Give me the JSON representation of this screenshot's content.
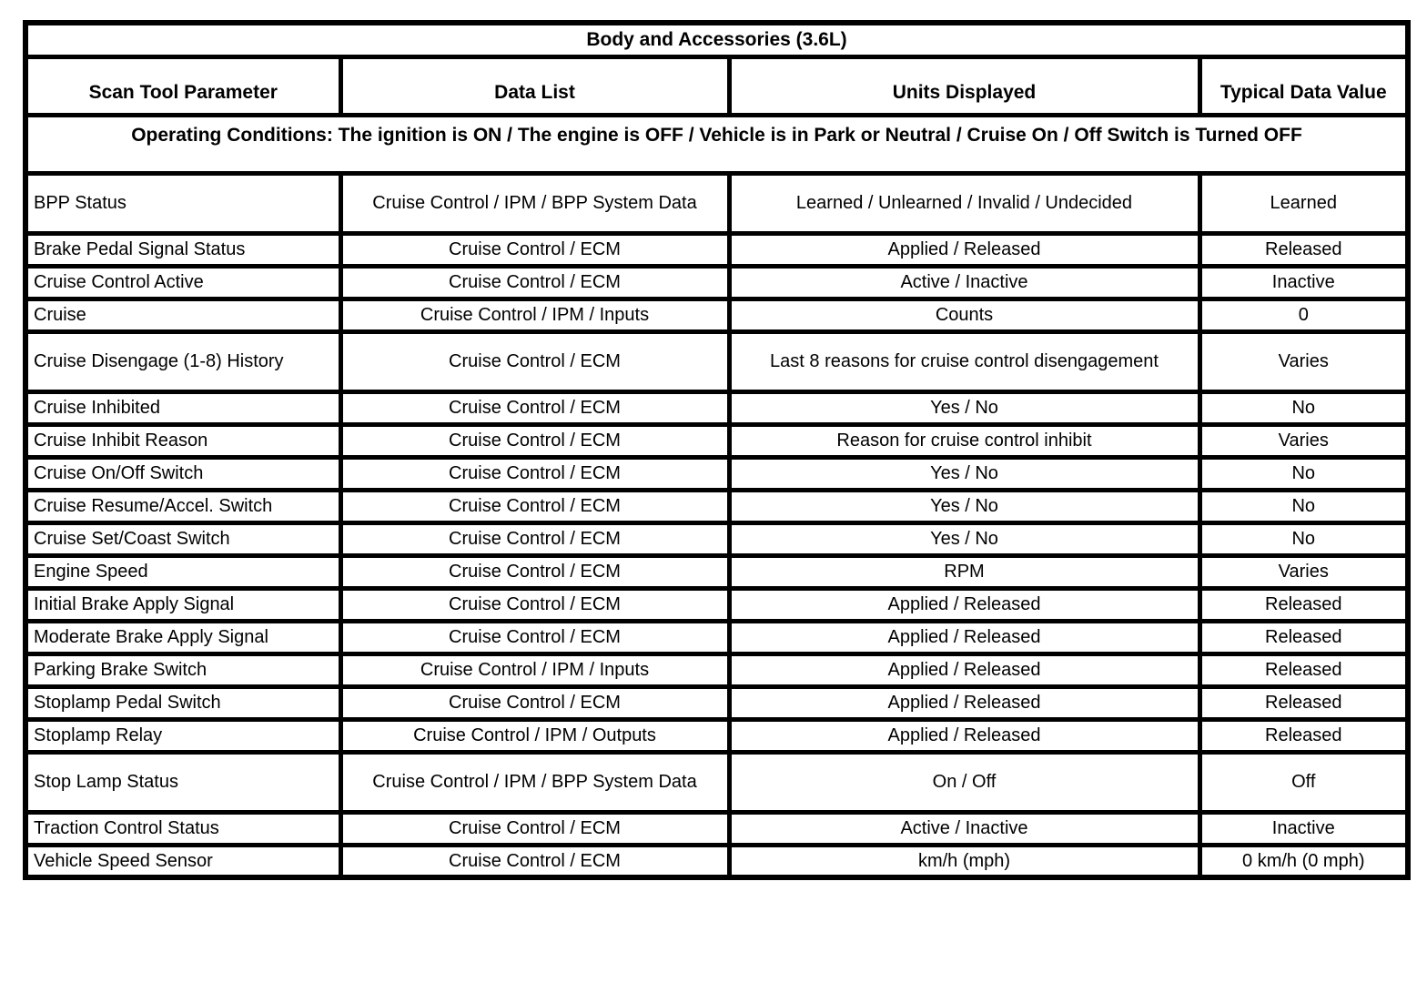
{
  "table": {
    "title": "Body and Accessories (3.6L)",
    "columns": {
      "parameter": "Scan Tool Parameter",
      "data_list": "Data List",
      "units": "Units Displayed",
      "typical": "Typical Data Value"
    },
    "operating_conditions": "Operating Conditions: The ignition is ON / The engine is OFF / Vehicle is in Park or Neutral / Cruise On / Off Switch is Turned OFF",
    "rows": [
      {
        "parameter": "BPP Status",
        "data_list": "Cruise Control / IPM / BPP System Data",
        "units": "Learned / Unlearned / Invalid / Undecided",
        "typical": "Learned"
      },
      {
        "parameter": "Brake Pedal Signal Status",
        "data_list": "Cruise Control / ECM",
        "units": "Applied / Released",
        "typical": "Released"
      },
      {
        "parameter": "Cruise Control Active",
        "data_list": "Cruise Control / ECM",
        "units": "Active / Inactive",
        "typical": "Inactive"
      },
      {
        "parameter": "Cruise",
        "data_list": "Cruise Control / IPM / Inputs",
        "units": "Counts",
        "typical": "0"
      },
      {
        "parameter": "Cruise Disengage (1-8) History",
        "data_list": "Cruise Control / ECM",
        "units": "Last 8 reasons for cruise control disengagement",
        "typical": "Varies"
      },
      {
        "parameter": "Cruise Inhibited",
        "data_list": "Cruise Control / ECM",
        "units": "Yes / No",
        "typical": "No"
      },
      {
        "parameter": "Cruise Inhibit Reason",
        "data_list": "Cruise Control / ECM",
        "units": "Reason for cruise control inhibit",
        "typical": "Varies"
      },
      {
        "parameter": "Cruise On/Off Switch",
        "data_list": "Cruise Control / ECM",
        "units": "Yes / No",
        "typical": "No"
      },
      {
        "parameter": "Cruise Resume/Accel. Switch",
        "data_list": "Cruise Control / ECM",
        "units": "Yes / No",
        "typical": "No"
      },
      {
        "parameter": "Cruise Set/Coast Switch",
        "data_list": "Cruise Control / ECM",
        "units": "Yes / No",
        "typical": "No"
      },
      {
        "parameter": "Engine Speed",
        "data_list": "Cruise Control / ECM",
        "units": "RPM",
        "typical": "Varies"
      },
      {
        "parameter": "Initial Brake Apply Signal",
        "data_list": "Cruise Control / ECM",
        "units": "Applied / Released",
        "typical": "Released"
      },
      {
        "parameter": "Moderate Brake Apply Signal",
        "data_list": "Cruise Control / ECM",
        "units": "Applied / Released",
        "typical": "Released"
      },
      {
        "parameter": "Parking Brake Switch",
        "data_list": "Cruise Control / IPM / Inputs",
        "units": "Applied / Released",
        "typical": "Released"
      },
      {
        "parameter": "Stoplamp Pedal Switch",
        "data_list": "Cruise Control / ECM",
        "units": "Applied / Released",
        "typical": "Released"
      },
      {
        "parameter": "Stoplamp Relay",
        "data_list": "Cruise Control / IPM / Outputs",
        "units": "Applied / Released",
        "typical": "Released"
      },
      {
        "parameter": "Stop Lamp Status",
        "data_list": "Cruise Control / IPM / BPP System Data",
        "units": "On / Off",
        "typical": "Off"
      },
      {
        "parameter": "Traction Control Status",
        "data_list": "Cruise Control / ECM",
        "units": "Active / Inactive",
        "typical": "Inactive"
      },
      {
        "parameter": "Vehicle Speed Sensor",
        "data_list": "Cruise Control / ECM",
        "units": "km/h (mph)",
        "typical": "0 km/h (0 mph)"
      }
    ]
  }
}
